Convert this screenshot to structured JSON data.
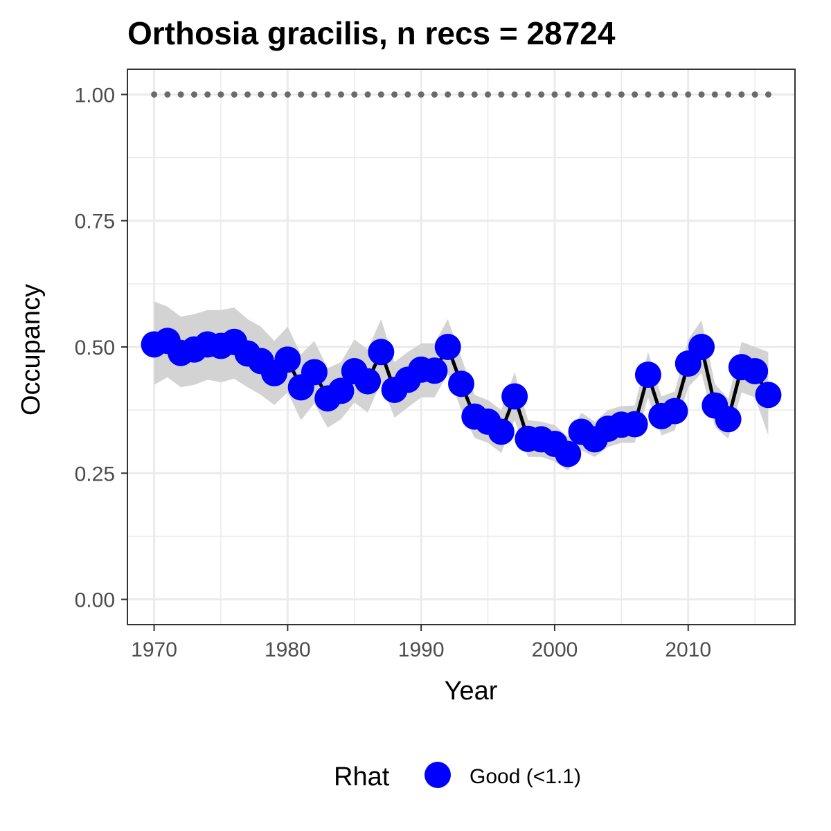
{
  "chart_data": {
    "type": "line",
    "title": "Orthosia gracilis, n recs = 28724",
    "xlabel": "Year",
    "ylabel": "Occupancy",
    "xlim": [
      1968,
      2018
    ],
    "ylim": [
      -0.05,
      1.05
    ],
    "x_ticks": [
      1970,
      1980,
      1990,
      2000,
      2010
    ],
    "y_ticks": [
      0.0,
      0.25,
      0.5,
      0.75,
      1.0
    ],
    "y_tick_labels": [
      "0.00",
      "0.25",
      "0.50",
      "0.75",
      "1.00"
    ],
    "grid": true,
    "x": [
      1970,
      1971,
      1972,
      1973,
      1974,
      1975,
      1976,
      1977,
      1978,
      1979,
      1980,
      1981,
      1982,
      1983,
      1984,
      1985,
      1986,
      1987,
      1988,
      1989,
      1990,
      1991,
      1992,
      1993,
      1994,
      1995,
      1996,
      1997,
      1998,
      1999,
      2000,
      2001,
      2002,
      2003,
      2004,
      2005,
      2006,
      2007,
      2008,
      2009,
      2010,
      2011,
      2012,
      2013,
      2014,
      2015,
      2016
    ],
    "series": [
      {
        "values": [
          0.505,
          0.512,
          0.488,
          0.495,
          0.505,
          0.502,
          0.51,
          0.487,
          0.472,
          0.448,
          0.475,
          0.42,
          0.45,
          0.398,
          0.413,
          0.452,
          0.432,
          0.49,
          0.415,
          0.435,
          0.455,
          0.453,
          0.5,
          0.427,
          0.362,
          0.352,
          0.332,
          0.402,
          0.318,
          0.317,
          0.308,
          0.288,
          0.332,
          0.317,
          0.338,
          0.346,
          0.347,
          0.445,
          0.363,
          0.373,
          0.467,
          0.5,
          0.384,
          0.357,
          0.46,
          0.452,
          0.405
        ],
        "lower": [
          0.425,
          0.44,
          0.42,
          0.425,
          0.435,
          0.43,
          0.437,
          0.42,
          0.405,
          0.385,
          0.41,
          0.355,
          0.388,
          0.34,
          0.357,
          0.39,
          0.37,
          0.43,
          0.36,
          0.38,
          0.4,
          0.4,
          0.447,
          0.375,
          0.32,
          0.31,
          0.29,
          0.355,
          0.282,
          0.282,
          0.273,
          0.255,
          0.295,
          0.282,
          0.302,
          0.31,
          0.31,
          0.4,
          0.325,
          0.335,
          0.42,
          0.448,
          0.342,
          0.318,
          0.41,
          0.4,
          0.325
        ],
        "upper": [
          0.59,
          0.58,
          0.56,
          0.565,
          0.573,
          0.573,
          0.578,
          0.555,
          0.54,
          0.512,
          0.54,
          0.485,
          0.512,
          0.458,
          0.47,
          0.515,
          0.495,
          0.555,
          0.47,
          0.49,
          0.507,
          0.507,
          0.555,
          0.48,
          0.405,
          0.395,
          0.375,
          0.45,
          0.355,
          0.352,
          0.345,
          0.322,
          0.37,
          0.352,
          0.375,
          0.383,
          0.384,
          0.49,
          0.402,
          0.412,
          0.515,
          0.553,
          0.427,
          0.397,
          0.51,
          0.5,
          0.49
        ]
      },
      {
        "values": [
          1,
          1,
          1,
          1,
          1,
          1,
          1,
          1,
          1,
          1,
          1,
          1,
          1,
          1,
          1,
          1,
          1,
          1,
          1,
          1,
          1,
          1,
          1,
          1,
          1,
          1,
          1,
          1,
          1,
          1,
          1,
          1,
          1,
          1,
          1,
          1,
          1,
          1,
          1,
          1,
          1,
          1,
          1,
          1,
          1,
          1,
          1
        ]
      }
    ],
    "legend": {
      "title": "Rhat",
      "entries": [
        "Good (<1.1)"
      ],
      "placement": "bottom"
    }
  },
  "colors": {
    "points": "#0000ff",
    "line": "#000000",
    "ribbon": "#d3d3d3",
    "reference_dots": "#6b6b6b",
    "grid": "#ebebeb",
    "panel_border": "#333333"
  }
}
